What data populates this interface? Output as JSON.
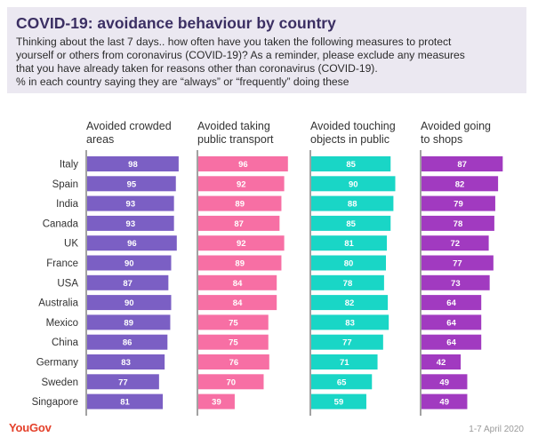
{
  "title": "COVID-19: avoidance behaviour by country",
  "subtitle_lines": [
    "Thinking about the last 7 days.. how often have you taken the following measures to protect",
    "yourself or others from coronavirus (COVID-19)? As a reminder, please exclude any measures",
    "that you have already taken for reasons other than coronavirus (COVID-19).",
    "% in each country saying they are “always” or “frequently” doing these"
  ],
  "footer": {
    "brand": "YouGov",
    "date": "1-7 April 2020"
  },
  "colors": {
    "crowded": "#7b5fc4",
    "transport": "#f76fa4",
    "touching": "#19d6c6",
    "shops": "#a13ac0",
    "header_bg": "#ebe8f1",
    "title": "#3b2f63",
    "brand": "#e4412b"
  },
  "chart_data": {
    "type": "bar",
    "orientation": "horizontal",
    "categories": [
      "Italy",
      "Spain",
      "India",
      "Canada",
      "UK",
      "France",
      "USA",
      "Australia",
      "Mexico",
      "China",
      "Germany",
      "Sweden",
      "Singapore"
    ],
    "series": [
      {
        "key": "crowded",
        "name": "Avoided crowded areas",
        "label_lines": [
          "Avoided crowded",
          "areas"
        ],
        "values": [
          98,
          95,
          93,
          93,
          96,
          90,
          87,
          90,
          89,
          86,
          83,
          77,
          81
        ]
      },
      {
        "key": "transport",
        "name": "Avoided taking public transport",
        "label_lines": [
          "Avoided taking",
          "public transport"
        ],
        "values": [
          96,
          92,
          89,
          87,
          92,
          89,
          84,
          84,
          75,
          75,
          76,
          70,
          39
        ]
      },
      {
        "key": "touching",
        "name": "Avoided touching objects in public",
        "label_lines": [
          "Avoided touching",
          "objects in public"
        ],
        "values": [
          85,
          90,
          88,
          85,
          81,
          80,
          78,
          82,
          83,
          77,
          71,
          65,
          59
        ]
      },
      {
        "key": "shops",
        "name": "Avoided going to shops",
        "label_lines": [
          "Avoided going",
          "to shops"
        ],
        "values": [
          87,
          82,
          79,
          78,
          72,
          77,
          73,
          64,
          64,
          64,
          42,
          49,
          49
        ]
      }
    ],
    "xlim": [
      0,
      100
    ],
    "unit": "%",
    "data_labels": "inside"
  }
}
